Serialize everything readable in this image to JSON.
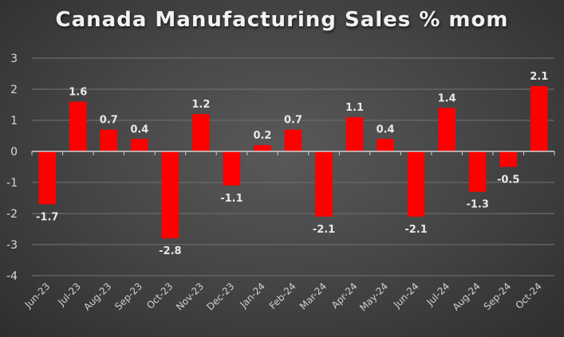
{
  "chart_data": {
    "type": "bar",
    "title": "Canada Manufacturing Sales % mom",
    "xlabel": "",
    "ylabel": "",
    "ylim": [
      -4,
      3
    ],
    "yticks": [
      3,
      2,
      1,
      0,
      -1,
      -2,
      -3,
      -4
    ],
    "grid": true,
    "legend": "none",
    "bar_color": "#ff0000",
    "categories": [
      "Jun-23",
      "Jul-23",
      "Aug-23",
      "Sep-23",
      "Oct-23",
      "Nov-23",
      "Dec-23",
      "Jan-24",
      "Feb-24",
      "Mar-24",
      "Apr-24",
      "May-24",
      "Jun-24",
      "Jul-24",
      "Aug-24",
      "Sep-24",
      "Oct-24"
    ],
    "values": [
      -1.7,
      1.6,
      0.7,
      0.4,
      -2.8,
      1.2,
      -1.1,
      0.2,
      0.7,
      -2.1,
      1.1,
      0.4,
      -2.1,
      1.4,
      -1.3,
      -0.5,
      2.1
    ]
  }
}
